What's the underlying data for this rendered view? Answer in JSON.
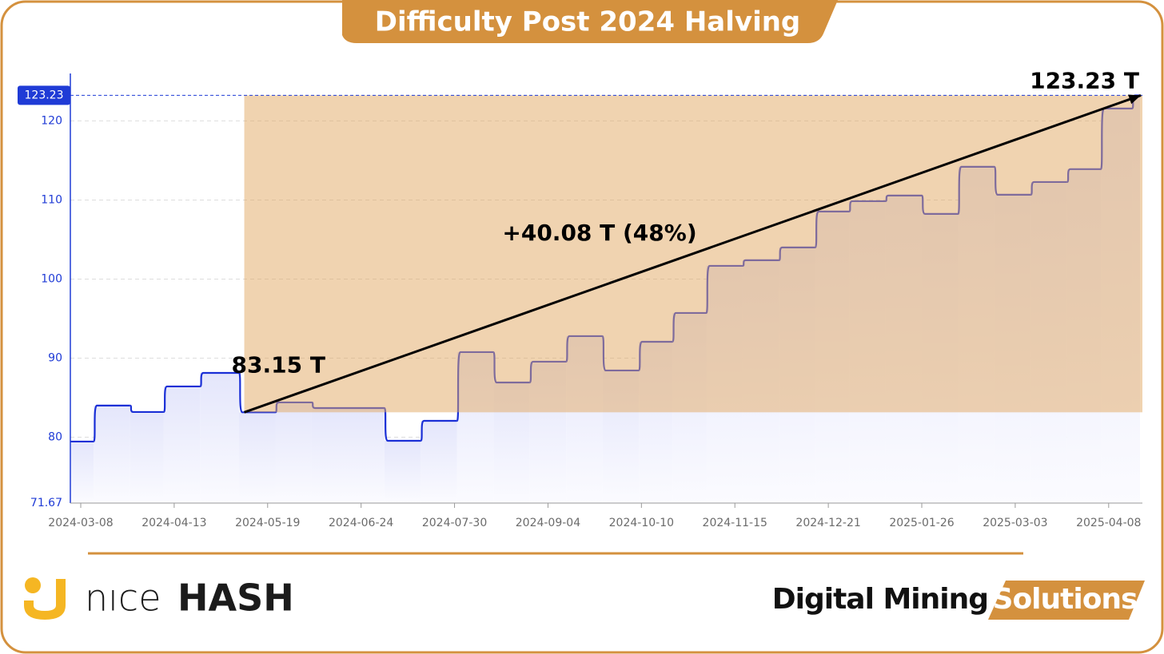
{
  "chart_data": {
    "type": "step-line",
    "title": "Difficulty Post 2024 Halving",
    "x": [
      "2024-03-04",
      "2024-03-13",
      "2024-03-27",
      "2024-04-09",
      "2024-04-23",
      "2024-05-08",
      "2024-05-22",
      "2024-06-05",
      "2024-07-03",
      "2024-07-17",
      "2024-07-31",
      "2024-08-14",
      "2024-08-28",
      "2024-09-11",
      "2024-09-25",
      "2024-10-09",
      "2024-10-22",
      "2024-11-04",
      "2024-11-18",
      "2024-12-02",
      "2024-12-16",
      "2024-12-29",
      "2025-01-12",
      "2025-01-26",
      "2025-02-09",
      "2025-02-23",
      "2025-03-09",
      "2025-03-23",
      "2025-04-05",
      "2025-04-17"
    ],
    "values": [
      79.45,
      84.0,
      83.19,
      86.42,
      88.13,
      83.15,
      84.4,
      83.69,
      79.55,
      82.07,
      90.76,
      86.92,
      89.55,
      92.78,
      88.44,
      92.07,
      95.71,
      101.67,
      102.38,
      104.0,
      108.54,
      109.85,
      110.56,
      108.24,
      114.2,
      110.66,
      112.27,
      113.9,
      121.57,
      123.23
    ],
    "color": "#1a2fd6",
    "xlim": [
      "2024-03-04",
      "2025-04-21"
    ],
    "xticks": [
      "2024-03-08",
      "2024-04-13",
      "2024-05-19",
      "2024-06-24",
      "2024-07-30",
      "2024-09-04",
      "2024-10-10",
      "2024-11-15",
      "2024-12-21",
      "2025-01-26",
      "2025-03-03",
      "2025-04-08"
    ],
    "ylim": [
      71.67,
      126
    ],
    "yticks": [
      71.67,
      80,
      90,
      100,
      110,
      120
    ],
    "highlight_ytick": 123.23,
    "grid": true,
    "highlight_color": "#e2a862",
    "halving": {
      "x": "2024-05-10",
      "value": 83.15,
      "label": "83.15 T"
    },
    "latest": {
      "x": "2025-04-21",
      "value": 123.23,
      "label": "123.23 T"
    },
    "change_label": "+40.08 T (48%)"
  },
  "footer": {
    "left_logo": {
      "light": "nıce",
      "bold": "HASH"
    },
    "right_logo": {
      "dark": "Digital Mining",
      "highlight": "Solutions"
    }
  }
}
